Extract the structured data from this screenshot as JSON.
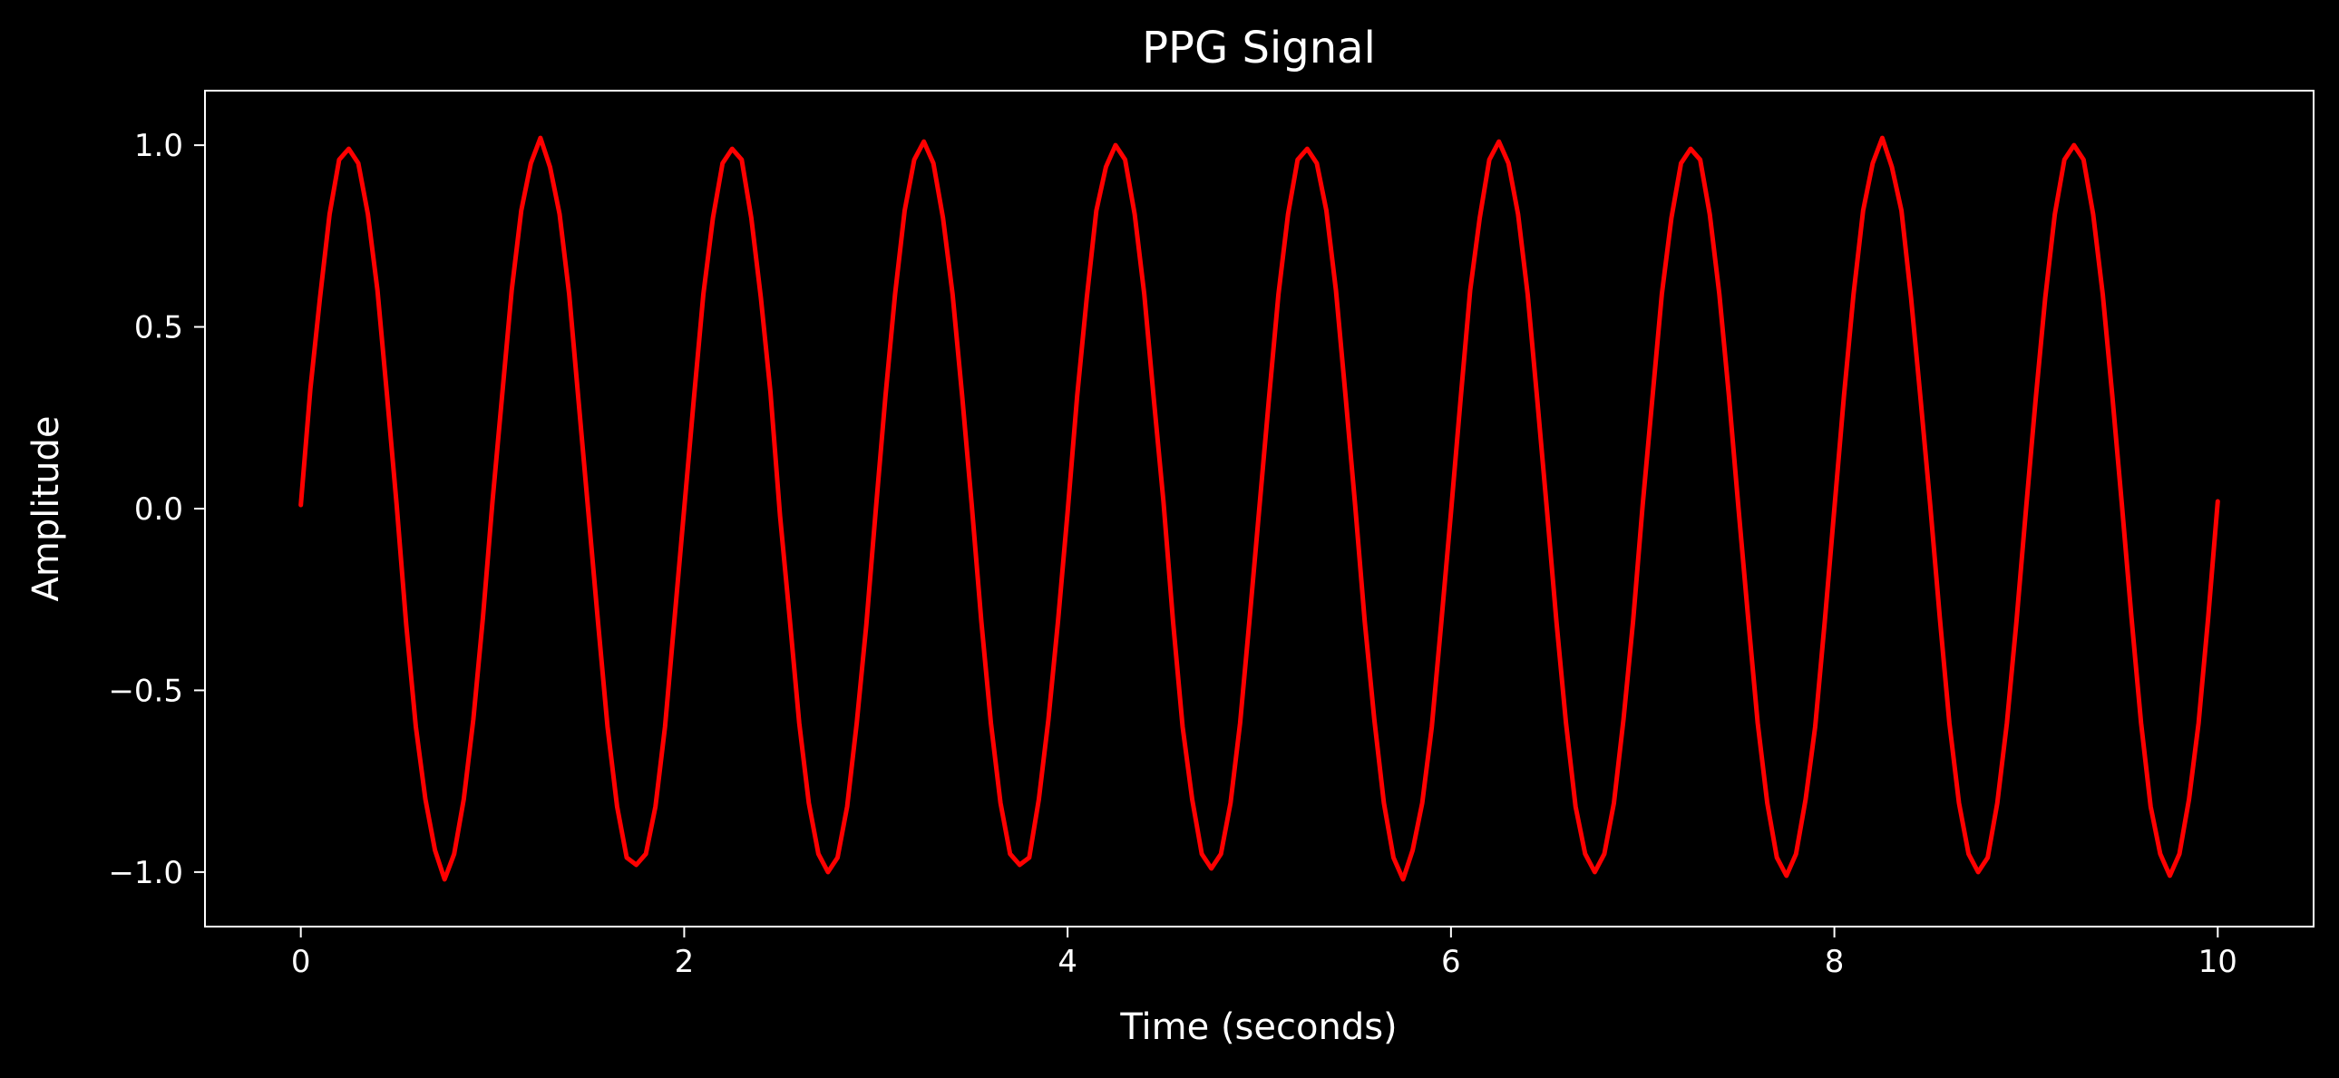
{
  "chart_data": {
    "type": "line",
    "title": "PPG Signal",
    "xlabel": "Time (seconds)",
    "ylabel": "Amplitude",
    "xlim": [
      -0.5,
      10.5
    ],
    "ylim": [
      -1.15,
      1.15
    ],
    "x_ticks": [
      0,
      2,
      4,
      6,
      8,
      10
    ],
    "x_tick_labels": [
      "0",
      "2",
      "4",
      "6",
      "8",
      "10"
    ],
    "y_ticks": [
      -1.0,
      -0.5,
      0.0,
      0.5,
      1.0
    ],
    "y_tick_labels": [
      "−1.0",
      "−0.5",
      "0.0",
      "0.5",
      "1.0"
    ],
    "grid": false,
    "legend": "none",
    "colors": {
      "background": "#000000",
      "axes": "#ffffff",
      "text": "#ffffff",
      "line": "#ff0000"
    },
    "series": [
      {
        "x": [
          0.0,
          0.05,
          0.1,
          0.15,
          0.2,
          0.25,
          0.3,
          0.35,
          0.4,
          0.45,
          0.5,
          0.55,
          0.6,
          0.65,
          0.7,
          0.75,
          0.8,
          0.85,
          0.9,
          0.95,
          1.0,
          1.05,
          1.1,
          1.15,
          1.2,
          1.25,
          1.3,
          1.35,
          1.4,
          1.45,
          1.5,
          1.55,
          1.6,
          1.65,
          1.7,
          1.75,
          1.8,
          1.85,
          1.9,
          1.95,
          2.0,
          2.05,
          2.1,
          2.15,
          2.2,
          2.25,
          2.3,
          2.35,
          2.4,
          2.45,
          2.5,
          2.55,
          2.6,
          2.65,
          2.7,
          2.75,
          2.8,
          2.85,
          2.9,
          2.95,
          3.0,
          3.05,
          3.1,
          3.15,
          3.2,
          3.25,
          3.3,
          3.35,
          3.4,
          3.45,
          3.5,
          3.55,
          3.6,
          3.65,
          3.7,
          3.75,
          3.8,
          3.85,
          3.9,
          3.95,
          4.0,
          4.05,
          4.1,
          4.15,
          4.2,
          4.25,
          4.3,
          4.35,
          4.4,
          4.45,
          4.5,
          4.55,
          4.6,
          4.65,
          4.7,
          4.75,
          4.8,
          4.85,
          4.9,
          4.95,
          5.0,
          5.05,
          5.1,
          5.15,
          5.2,
          5.25,
          5.3,
          5.35,
          5.4,
          5.45,
          5.5,
          5.55,
          5.6,
          5.65,
          5.7,
          5.75,
          5.8,
          5.85,
          5.9,
          5.95,
          6.0,
          6.05,
          6.1,
          6.15,
          6.2,
          6.25,
          6.3,
          6.35,
          6.4,
          6.45,
          6.5,
          6.55,
          6.6,
          6.65,
          6.7,
          6.75,
          6.8,
          6.85,
          6.9,
          6.95,
          7.0,
          7.05,
          7.1,
          7.15,
          7.2,
          7.25,
          7.3,
          7.35,
          7.4,
          7.45,
          7.5,
          7.55,
          7.6,
          7.65,
          7.7,
          7.75,
          7.8,
          7.85,
          7.9,
          7.95,
          8.0,
          8.05,
          8.1,
          8.15,
          8.2,
          8.25,
          8.3,
          8.35,
          8.4,
          8.45,
          8.5,
          8.55,
          8.6,
          8.65,
          8.7,
          8.75,
          8.8,
          8.85,
          8.9,
          8.95,
          9.0,
          9.05,
          9.1,
          9.15,
          9.2,
          9.25,
          9.3,
          9.35,
          9.4,
          9.45,
          9.5,
          9.55,
          9.6,
          9.65,
          9.7,
          9.75,
          9.8,
          9.85,
          9.9,
          9.95,
          10.0
        ],
        "y": [
          0.01,
          0.33,
          0.58,
          0.81,
          0.96,
          0.99,
          0.95,
          0.81,
          0.6,
          0.31,
          0.01,
          -0.32,
          -0.6,
          -0.8,
          -0.94,
          -1.02,
          -0.95,
          -0.8,
          -0.58,
          -0.3,
          0.02,
          0.31,
          0.6,
          0.82,
          0.95,
          1.02,
          0.94,
          0.81,
          0.59,
          0.29,
          -0.01,
          -0.31,
          -0.6,
          -0.82,
          -0.96,
          -0.98,
          -0.95,
          -0.82,
          -0.6,
          -0.3,
          0.0,
          0.3,
          0.59,
          0.8,
          0.95,
          0.99,
          0.96,
          0.8,
          0.58,
          0.32,
          -0.02,
          -0.3,
          -0.59,
          -0.81,
          -0.95,
          -1.0,
          -0.96,
          -0.82,
          -0.59,
          -0.32,
          0.0,
          0.31,
          0.59,
          0.82,
          0.96,
          1.01,
          0.95,
          0.8,
          0.59,
          0.31,
          0.01,
          -0.31,
          -0.59,
          -0.81,
          -0.95,
          -0.98,
          -0.96,
          -0.8,
          -0.58,
          -0.31,
          -0.01,
          0.31,
          0.58,
          0.82,
          0.94,
          1.0,
          0.96,
          0.81,
          0.59,
          0.3,
          0.02,
          -0.31,
          -0.6,
          -0.8,
          -0.95,
          -0.99,
          -0.95,
          -0.81,
          -0.59,
          -0.3,
          0.0,
          0.3,
          0.59,
          0.81,
          0.96,
          0.99,
          0.95,
          0.82,
          0.6,
          0.31,
          0.01,
          -0.31,
          -0.58,
          -0.81,
          -0.96,
          -1.02,
          -0.94,
          -0.81,
          -0.6,
          -0.31,
          -0.01,
          0.3,
          0.6,
          0.8,
          0.96,
          1.01,
          0.95,
          0.81,
          0.59,
          0.3,
          0.0,
          -0.31,
          -0.59,
          -0.82,
          -0.95,
          -1.0,
          -0.95,
          -0.81,
          -0.58,
          -0.31,
          0.01,
          0.3,
          0.59,
          0.8,
          0.95,
          0.99,
          0.96,
          0.81,
          0.59,
          0.31,
          0.0,
          -0.3,
          -0.59,
          -0.81,
          -0.96,
          -1.01,
          -0.95,
          -0.8,
          -0.6,
          -0.31,
          0.0,
          0.31,
          0.59,
          0.82,
          0.95,
          1.02,
          0.94,
          0.82,
          0.58,
          0.3,
          0.01,
          -0.3,
          -0.59,
          -0.81,
          -0.95,
          -1.0,
          -0.96,
          -0.81,
          -0.59,
          -0.31,
          0.0,
          0.3,
          0.58,
          0.81,
          0.96,
          1.0,
          0.96,
          0.81,
          0.59,
          0.31,
          0.01,
          -0.3,
          -0.59,
          -0.82,
          -0.95,
          -1.01,
          -0.95,
          -0.8,
          -0.59,
          -0.3,
          0.02
        ]
      }
    ]
  }
}
